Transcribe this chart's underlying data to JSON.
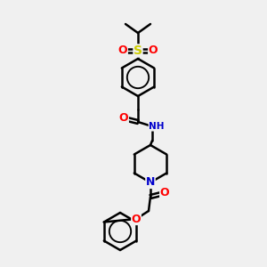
{
  "bg_color": "#f0f0f0",
  "bond_color": "#000000",
  "bond_width": 1.8,
  "atom_colors": {
    "O": "#ff0000",
    "N": "#0000cc",
    "S": "#cccc00",
    "H_amide": "#00aa88"
  },
  "font_size": 8
}
